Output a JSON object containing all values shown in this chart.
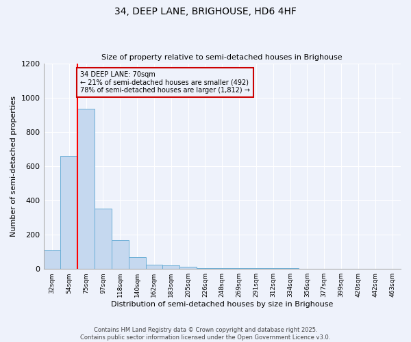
{
  "title": "34, DEEP LANE, BRIGHOUSE, HD6 4HF",
  "subtitle": "Size of property relative to semi-detached houses in Brighouse",
  "xlabel": "Distribution of semi-detached houses by size in Brighouse",
  "ylabel": "Number of semi-detached properties",
  "categories": [
    "32sqm",
    "54sqm",
    "75sqm",
    "97sqm",
    "118sqm",
    "140sqm",
    "162sqm",
    "183sqm",
    "205sqm",
    "226sqm",
    "248sqm",
    "269sqm",
    "291sqm",
    "312sqm",
    "334sqm",
    "356sqm",
    "377sqm",
    "399sqm",
    "420sqm",
    "442sqm",
    "463sqm"
  ],
  "bar_heights": [
    107,
    660,
    935,
    352,
    168,
    70,
    25,
    20,
    14,
    5,
    5,
    5,
    5,
    5,
    5,
    0,
    0,
    0,
    0,
    0,
    0
  ],
  "bar_color": "#c5d8ef",
  "bar_edge_color": "#6aaed6",
  "red_line_x": 1.5,
  "annotation_text_line1": "34 DEEP LANE: 70sqm",
  "annotation_text_line2": "← 21% of semi-detached houses are smaller (492)",
  "annotation_text_line3": "78% of semi-detached houses are larger (1,812) →",
  "annotation_box_color": "#cc0000",
  "ylim": [
    0,
    1200
  ],
  "yticks": [
    0,
    200,
    400,
    600,
    800,
    1000,
    1200
  ],
  "background_color": "#eef2fb",
  "grid_color": "#ffffff",
  "title_fontsize": 10,
  "subtitle_fontsize": 8,
  "footer": "Contains HM Land Registry data © Crown copyright and database right 2025.\nContains public sector information licensed under the Open Government Licence v3.0."
}
